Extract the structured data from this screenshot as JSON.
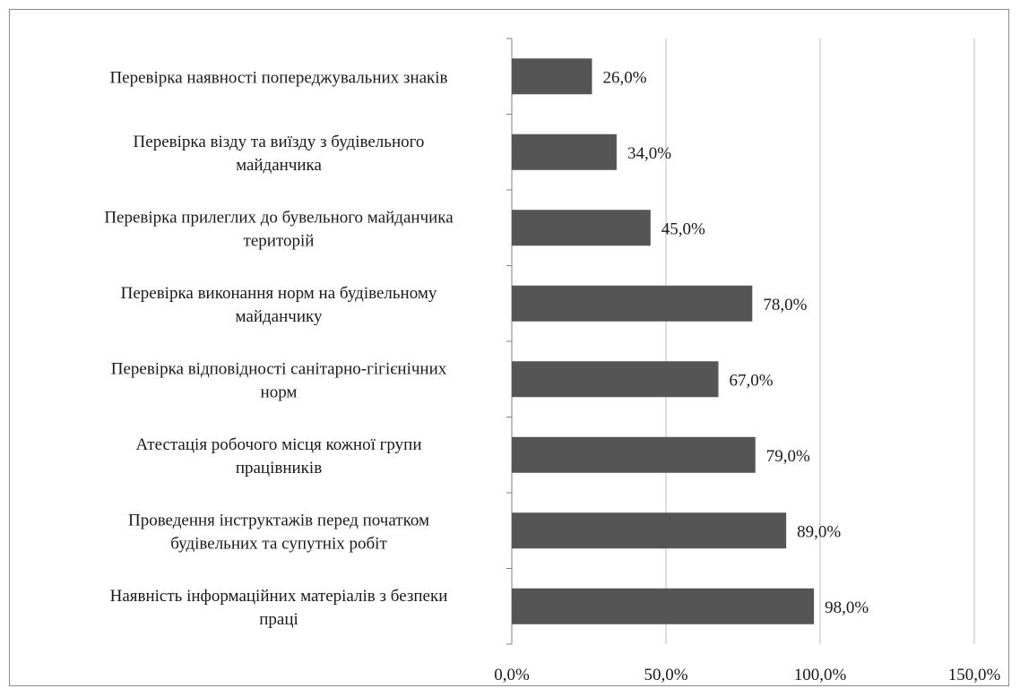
{
  "chart_data": {
    "type": "bar",
    "orientation": "horizontal",
    "categories": [
      [
        "Перевірка наявності попереджувальних знаків"
      ],
      [
        "Перевірка візду та виїзду з будівельного",
        "майданчика"
      ],
      [
        "Перевірка прилеглих до бувельного майданчика",
        "територій"
      ],
      [
        "Перевірка виконання норм на будівельному",
        "майданчику"
      ],
      [
        "Перевірка відповідності санітарно-гігієнічних",
        "норм"
      ],
      [
        "Атестація робочого місця кожної групи",
        "працівників"
      ],
      [
        "Проведення інструктажів перед початком",
        "будівельних та супутніх робіт"
      ],
      [
        "Наявність інформаційних матеріалів з безпеки",
        "праці"
      ]
    ],
    "values": [
      26.0,
      34.0,
      45.0,
      78.0,
      67.0,
      79.0,
      89.0,
      98.0
    ],
    "data_labels": [
      "26,0%",
      "34,0%",
      "45,0%",
      "78,0%",
      "67,0%",
      "79,0%",
      "89,0%",
      "98,0%"
    ],
    "x_ticks": [
      "0,0%",
      "50,0%",
      "100,0%",
      "150,0%"
    ],
    "x_tick_values": [
      0,
      50,
      100,
      150
    ],
    "xlim": [
      0,
      150
    ],
    "grid": "vertical",
    "legend": "none",
    "bar_color": "#555555",
    "grid_color": "#bdbdbd",
    "axis_color": "#808080",
    "title": "",
    "xlabel": "",
    "ylabel": ""
  }
}
